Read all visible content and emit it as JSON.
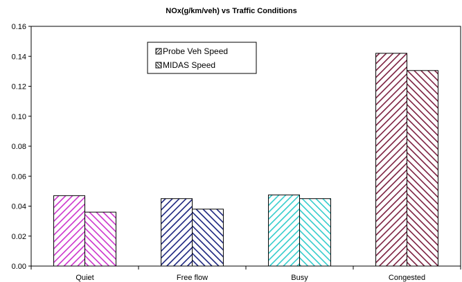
{
  "chart_data": {
    "type": "bar",
    "title": "NOx(g/km/veh) vs Traffic Conditions",
    "xlabel": "",
    "ylabel": "",
    "categories": [
      "Quiet",
      "Free  flow",
      "Busy",
      "Congested"
    ],
    "ylim": [
      0,
      0.16
    ],
    "yticks": [
      "0.00",
      "0.02",
      "0.04",
      "0.06",
      "0.08",
      "0.10",
      "0.12",
      "0.14",
      "0.16"
    ],
    "grid": false,
    "legend_position": "top-center",
    "series": [
      {
        "name": "Probe Veh Speed",
        "values": [
          0.047,
          0.045,
          0.0475,
          0.142
        ],
        "hatch": "forward"
      },
      {
        "name": "MIDAS Speed",
        "values": [
          0.036,
          0.038,
          0.045,
          0.1305
        ],
        "hatch": "back"
      }
    ],
    "category_colors": [
      "#cc33cc",
      "#1a237e",
      "#33cccc",
      "#7b1f3f"
    ]
  }
}
